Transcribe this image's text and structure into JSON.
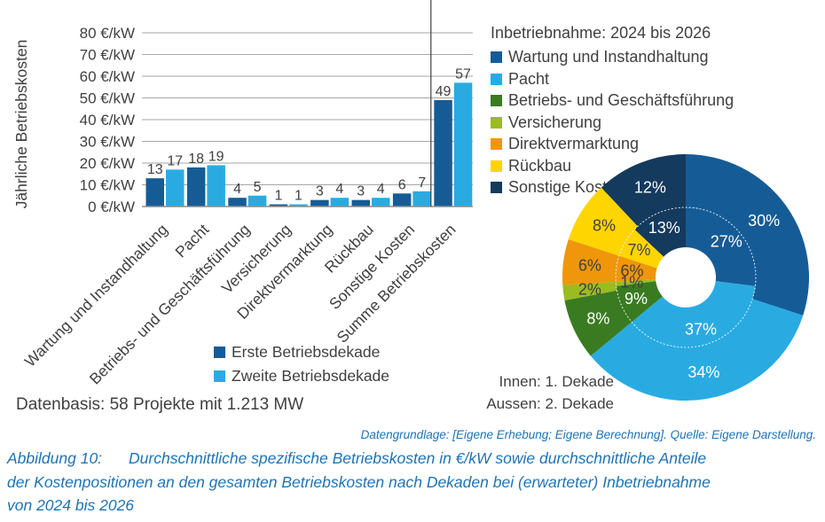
{
  "figure": {
    "data_basis": "Datenbasis: 58 Projekte mit 1.213 MW",
    "source_note": "Datengrundlage: [Eigene Erhebung; Eigene Berechnung]. Quelle: Eigene Darstellung.",
    "caption_label": "Abbildung 10:",
    "caption_lines": [
      "Durchschnittliche spezifische Betriebskosten in €/kW sowie durchschnittliche Anteile",
      "der Kostenpositionen an den gesamten Betriebskosten nach Dekaden bei (erwarteter) Inbetriebnahme",
      "von 2024 bis 2026"
    ],
    "caption_color": "#1f73b4",
    "text_color": "#404040",
    "grid_color": "#a6a6a6"
  },
  "chart_data": [
    {
      "type": "bar",
      "ylabel": "Jährliche Betriebskosten",
      "ytick_suffix": " €/kW",
      "ylim": [
        0,
        80
      ],
      "ytick_step": 10,
      "grid": true,
      "separator_before_category": 7,
      "categories": [
        "Wartung und Instandhaltung",
        "Pacht",
        "Betriebs- und Geschäftsführung",
        "Versicherung",
        "Direktvermarktung",
        "Rückbau",
        "Sonstige Kosten",
        "Summe Betriebskosten"
      ],
      "series": [
        {
          "name": "Erste Betriebsdekade",
          "color": "#155c97",
          "values": [
            13,
            18,
            4,
            1,
            3,
            3,
            6,
            49
          ]
        },
        {
          "name": "Zweite Betriebsdekade",
          "color": "#29abe2",
          "values": [
            17,
            19,
            5,
            1,
            4,
            4,
            7,
            57
          ]
        }
      ],
      "legend_position": "bottom"
    },
    {
      "type": "donut",
      "legend_title": "Inbetriebnahme: 2024 bis 2026",
      "legend_position": "top-left",
      "categories": [
        {
          "label": "Wartung und Instandhaltung",
          "color": "#155c97",
          "label_color": "#ffffff"
        },
        {
          "label": "Pacht",
          "color": "#29abe2",
          "label_color": "#ffffff"
        },
        {
          "label": "Betriebs- und Geschäftsführung",
          "color": "#3a7b22",
          "label_color": "#ffffff"
        },
        {
          "label": "Versicherung",
          "color": "#9abc20",
          "label_color": "#404040"
        },
        {
          "label": "Direktvermarktung",
          "color": "#f0960a",
          "label_color": "#404040"
        },
        {
          "label": "Rückbau",
          "color": "#ffd500",
          "label_color": "#404040"
        },
        {
          "label": "Sonstige Kosten",
          "color": "#143a5d",
          "label_color": "#ffffff"
        }
      ],
      "rings": [
        {
          "name": "1. Dekade",
          "position": "inner",
          "values": [
            27,
            37,
            9,
            1,
            6,
            7,
            13
          ]
        },
        {
          "name": "2. Dekade",
          "position": "outer",
          "values": [
            30,
            34,
            8,
            2,
            6,
            8,
            12
          ]
        }
      ],
      "ring_note": [
        "Innen: 1. Dekade",
        "Aussen: 2. Dekade"
      ],
      "unit": "%"
    }
  ]
}
